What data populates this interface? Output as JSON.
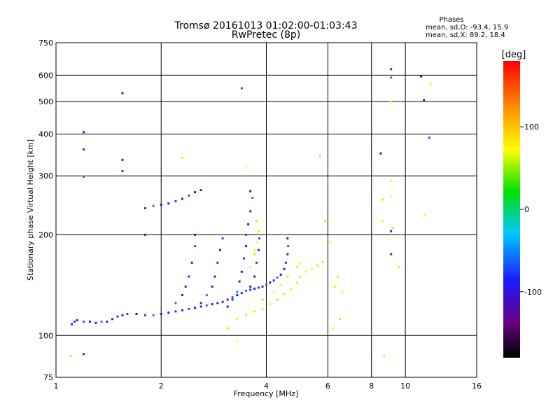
{
  "chart_data": {
    "type": "scatter",
    "title": "Tromsø 20161013 01:02:00-01:03:43",
    "subtitle": "RwPretec (8p)",
    "xlabel": "Frequency [MHz]",
    "ylabel": "Stationary phase Virtual Height [km]",
    "xscale": "log",
    "yscale": "log",
    "xlim": [
      1,
      16
    ],
    "ylim": [
      75,
      750
    ],
    "x_ticks": [
      1,
      2,
      4,
      6,
      8,
      10,
      16
    ],
    "y_ticks": [
      75,
      100,
      200,
      300,
      400,
      500,
      600,
      750
    ],
    "grid": true,
    "phase_box": {
      "title": "Phases",
      "line_o": "mean, sd,O: -93.4, 15.9",
      "line_x": "mean, sd,X:  89.2, 18.4"
    },
    "colorbar": {
      "label": "[deg]",
      "range": [
        -180,
        180
      ],
      "ticks": [
        100,
        0,
        -100
      ]
    },
    "series": [
      {
        "name": "O",
        "points": [
          [
            1.11,
            108
          ],
          [
            1.13,
            110
          ],
          [
            1.15,
            111
          ],
          [
            1.2,
            110
          ],
          [
            1.25,
            110
          ],
          [
            1.3,
            109
          ],
          [
            1.35,
            110
          ],
          [
            1.4,
            110
          ],
          [
            1.45,
            112
          ],
          [
            1.5,
            114
          ],
          [
            1.55,
            115
          ],
          [
            1.6,
            116
          ],
          [
            1.7,
            116
          ],
          [
            1.8,
            115
          ],
          [
            1.9,
            115
          ],
          [
            2.0,
            116
          ],
          [
            2.1,
            117
          ],
          [
            2.2,
            118
          ],
          [
            2.3,
            119
          ],
          [
            2.4,
            120
          ],
          [
            2.5,
            121
          ],
          [
            2.6,
            122
          ],
          [
            2.7,
            123
          ],
          [
            2.8,
            124
          ],
          [
            2.9,
            125
          ],
          [
            3.0,
            126
          ],
          [
            3.1,
            128
          ],
          [
            3.2,
            130
          ],
          [
            3.3,
            132
          ],
          [
            3.4,
            134
          ],
          [
            3.5,
            136
          ],
          [
            3.6,
            137
          ],
          [
            3.7,
            138
          ],
          [
            3.8,
            139
          ],
          [
            3.9,
            140
          ],
          [
            4.0,
            142
          ],
          [
            4.1,
            144
          ],
          [
            4.2,
            146
          ],
          [
            4.3,
            149
          ],
          [
            4.4,
            152
          ],
          [
            4.5,
            158
          ],
          [
            4.55,
            165
          ],
          [
            4.6,
            175
          ],
          [
            4.62,
            185
          ],
          [
            4.6,
            195
          ],
          [
            1.8,
            240
          ],
          [
            1.9,
            244
          ],
          [
            2.0,
            246
          ],
          [
            2.1,
            248
          ],
          [
            2.2,
            252
          ],
          [
            2.3,
            256
          ],
          [
            2.4,
            262
          ],
          [
            2.5,
            268
          ],
          [
            2.6,
            272
          ],
          [
            2.2,
            125
          ],
          [
            2.3,
            132
          ],
          [
            2.35,
            140
          ],
          [
            2.4,
            150
          ],
          [
            2.45,
            165
          ],
          [
            2.5,
            185
          ],
          [
            2.5,
            200
          ],
          [
            2.6,
            125
          ],
          [
            2.7,
            132
          ],
          [
            2.8,
            140
          ],
          [
            2.85,
            150
          ],
          [
            2.9,
            165
          ],
          [
            2.95,
            180
          ],
          [
            3.0,
            195
          ],
          [
            3.1,
            122
          ],
          [
            3.2,
            128
          ],
          [
            3.3,
            135
          ],
          [
            3.35,
            145
          ],
          [
            3.4,
            155
          ],
          [
            3.45,
            170
          ],
          [
            3.5,
            185
          ],
          [
            3.5,
            200
          ],
          [
            3.55,
            215
          ],
          [
            3.6,
            235
          ],
          [
            3.65,
            258
          ],
          [
            3.6,
            140
          ],
          [
            3.7,
            150
          ],
          [
            3.75,
            165
          ],
          [
            3.8,
            180
          ],
          [
            3.82,
            195
          ],
          [
            1.2,
            405
          ],
          [
            1.2,
            360
          ],
          [
            1.2,
            298
          ],
          [
            1.55,
            530
          ],
          [
            1.55,
            335
          ],
          [
            1.55,
            310
          ],
          [
            1.8,
            200
          ],
          [
            3.4,
            548
          ],
          [
            3.6,
            270
          ],
          [
            9.1,
            625
          ],
          [
            9.1,
            590
          ],
          [
            8.5,
            350
          ],
          [
            9.1,
            205
          ],
          [
            9.1,
            175
          ],
          [
            11.3,
            505
          ],
          [
            11.7,
            390
          ],
          [
            11.1,
            595
          ],
          [
            1.2,
            88
          ]
        ]
      },
      {
        "name": "X",
        "points": [
          [
            3.3,
            112
          ],
          [
            3.5,
            115
          ],
          [
            3.7,
            118
          ],
          [
            3.9,
            120
          ],
          [
            4.1,
            124
          ],
          [
            4.3,
            128
          ],
          [
            4.5,
            133
          ],
          [
            4.7,
            138
          ],
          [
            4.9,
            144
          ],
          [
            5.0,
            150
          ],
          [
            5.2,
            155
          ],
          [
            5.4,
            158
          ],
          [
            5.6,
            162
          ],
          [
            5.8,
            166
          ],
          [
            5.0,
            165
          ],
          [
            4.9,
            160
          ],
          [
            4.6,
            150
          ],
          [
            4.4,
            142
          ],
          [
            4.2,
            135
          ],
          [
            3.9,
            128
          ],
          [
            3.7,
            175
          ],
          [
            3.75,
            190
          ],
          [
            3.8,
            205
          ],
          [
            3.75,
            220
          ],
          [
            3.7,
            180
          ],
          [
            3.6,
            160
          ],
          [
            5.7,
            345
          ],
          [
            5.9,
            220
          ],
          [
            6.1,
            190
          ],
          [
            6.3,
            140
          ],
          [
            6.4,
            150
          ],
          [
            6.6,
            135
          ],
          [
            6.2,
            105
          ],
          [
            6.5,
            112
          ],
          [
            8.6,
            255
          ],
          [
            8.6,
            220
          ],
          [
            8.7,
            87
          ],
          [
            9.1,
            500
          ],
          [
            9.1,
            290
          ],
          [
            9.1,
            260
          ],
          [
            9.2,
            210
          ],
          [
            9.6,
            160
          ],
          [
            11.4,
            230
          ],
          [
            11.8,
            565
          ],
          [
            2.3,
            340
          ],
          [
            3.5,
            320
          ],
          [
            3.3,
            96
          ],
          [
            1.1,
            87
          ],
          [
            3.1,
            105
          ]
        ]
      }
    ]
  }
}
